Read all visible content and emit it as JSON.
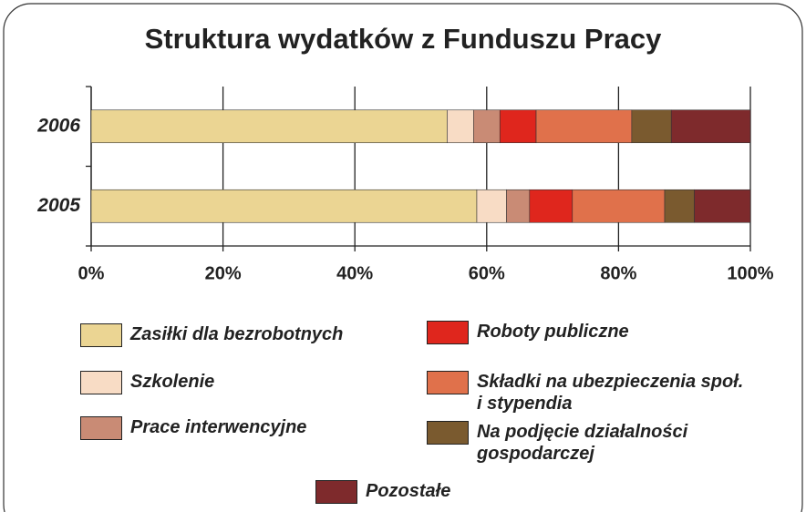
{
  "chart_data": {
    "type": "stacked-bar-horizontal",
    "title": "Struktura wydatków z Funduszu Pracy",
    "categories": [
      "2006",
      "2005"
    ],
    "series": [
      {
        "name": "Zasiłki dla bezrobotnych",
        "color": "#ebd593",
        "values": [
          54,
          58.5
        ]
      },
      {
        "name": "Szkolenie",
        "color": "#f8dcc5",
        "values": [
          4,
          4.5
        ]
      },
      {
        "name": "Prace interwencyjne",
        "color": "#c98b75",
        "values": [
          4,
          3.5
        ]
      },
      {
        "name": "Roboty publiczne",
        "color": "#df261d",
        "values": [
          5.5,
          6.5
        ]
      },
      {
        "name": "Składki na ubezpieczenia społ.\ni stypendia",
        "color": "#e0714b",
        "values": [
          14.5,
          14
        ]
      },
      {
        "name": "Na podjęcie działalności\ngospodarczej",
        "color": "#7a5a2f",
        "values": [
          6,
          4.5
        ]
      },
      {
        "name": "Pozostałe",
        "color": "#7e2a2c",
        "values": [
          12,
          8.5
        ]
      }
    ],
    "xlim": [
      0,
      100
    ],
    "xticks": [
      {
        "value": 0,
        "label": "0%"
      },
      {
        "value": 20,
        "label": "20%"
      },
      {
        "value": 40,
        "label": "40%"
      },
      {
        "value": 60,
        "label": "60%"
      },
      {
        "value": 80,
        "label": "80%"
      },
      {
        "value": 100,
        "label": "100%"
      }
    ],
    "grid": true
  }
}
